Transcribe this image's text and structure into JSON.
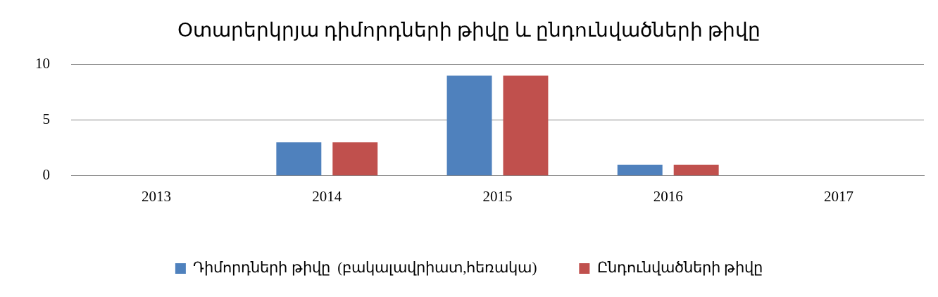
{
  "chart_data": {
    "type": "bar",
    "title": "Օտարերկրյա դիմորդների թիվը և ընդունվածների թիվը",
    "categories": [
      "2013",
      "2014",
      "2015",
      "2016",
      "2017"
    ],
    "series": [
      {
        "name": "Դիմորդների թիվը  (բակալավրիատ,հեռակա)",
        "color": "#4f81bd",
        "values": [
          0,
          3,
          9,
          1,
          0
        ]
      },
      {
        "name": "Ընդունվածների թիվը",
        "color": "#c0504d",
        "values": [
          0,
          3,
          9,
          1,
          0
        ]
      }
    ],
    "ylim": [
      0,
      10
    ],
    "yticks": [
      0,
      5,
      10
    ],
    "grid": "y",
    "legend": "bottom"
  }
}
